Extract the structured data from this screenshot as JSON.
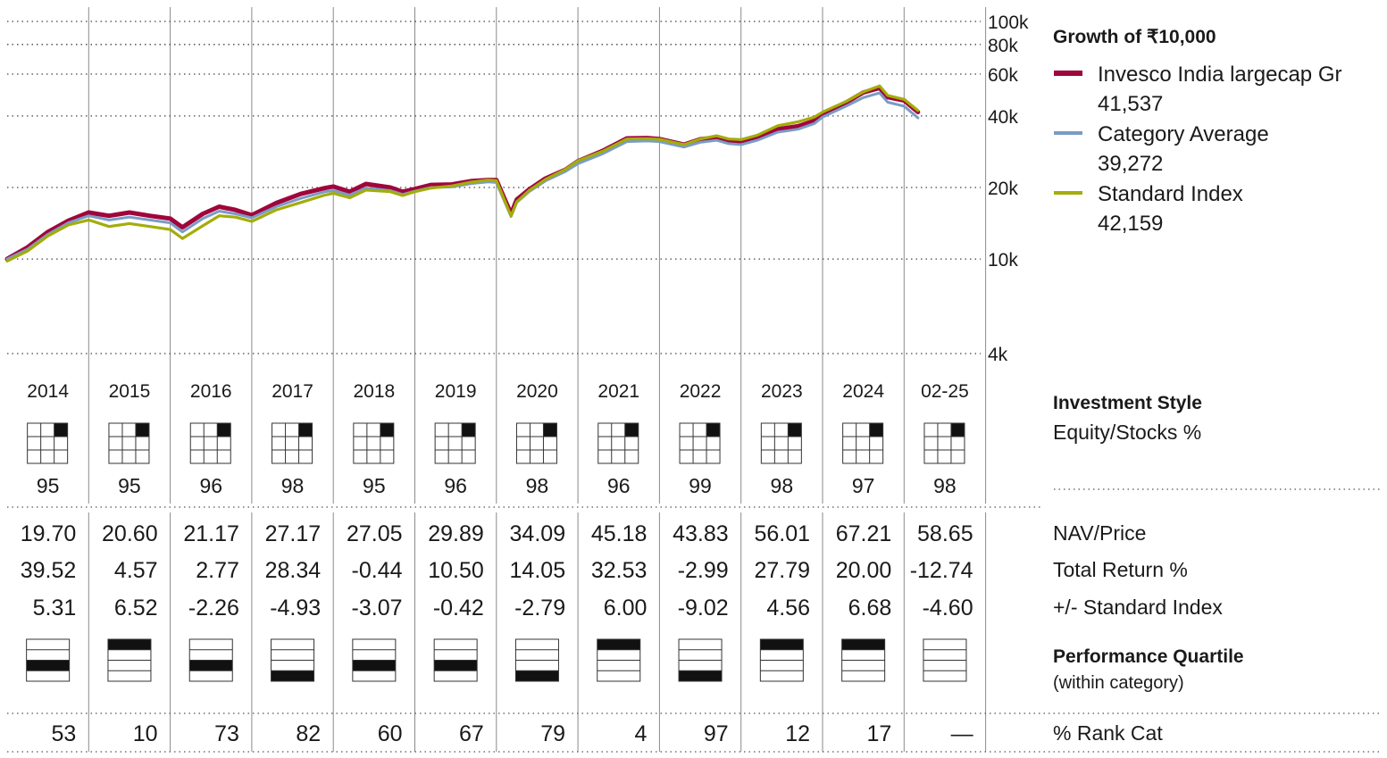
{
  "legend": {
    "title": "Growth of  ₹10,000",
    "items": [
      {
        "name": "Invesco India largecap Gr",
        "value": "41,537",
        "color": "#a0053c"
      },
      {
        "name": "Category Average",
        "value": "39,272",
        "color": "#7a9cc6"
      },
      {
        "name": "Standard Index",
        "value": "42,159",
        "color": "#a4ad0a"
      }
    ]
  },
  "chart_data": {
    "type": "line",
    "title": "Growth of  ₹10,000",
    "y_scale": "log",
    "ylim": [
      4000,
      100000
    ],
    "y_ticks": [
      {
        "value": 100000,
        "label": "100k"
      },
      {
        "value": 80000,
        "label": "80k"
      },
      {
        "value": 60000,
        "label": "60k"
      },
      {
        "value": 40000,
        "label": "40k"
      },
      {
        "value": 20000,
        "label": "20k"
      },
      {
        "value": 10000,
        "label": "10k"
      },
      {
        "value": 4000,
        "label": "4k"
      }
    ],
    "x_ticks": [
      "2014",
      "2015",
      "2016",
      "2017",
      "2018",
      "2019",
      "2020",
      "2021",
      "2022",
      "2023",
      "2024",
      "02-25"
    ],
    "xlim": [
      2014.0,
      2025.17
    ],
    "grid": true,
    "legend_position": "right",
    "series": [
      {
        "name": "Invesco India largecap Gr",
        "color": "#a0053c",
        "x": [
          2014.0,
          2014.25,
          2014.5,
          2014.75,
          2015.0,
          2015.25,
          2015.5,
          2015.75,
          2016.0,
          2016.15,
          2016.4,
          2016.6,
          2016.8,
          2017.0,
          2017.3,
          2017.6,
          2017.9,
          2018.0,
          2018.2,
          2018.4,
          2018.7,
          2018.85,
          2019.0,
          2019.2,
          2019.45,
          2019.7,
          2019.9,
          2020.0,
          2020.18,
          2020.25,
          2020.4,
          2020.6,
          2020.85,
          2021.0,
          2021.3,
          2021.6,
          2021.85,
          2022.0,
          2022.3,
          2022.5,
          2022.7,
          2022.85,
          2023.0,
          2023.2,
          2023.45,
          2023.7,
          2023.9,
          2024.0,
          2024.3,
          2024.5,
          2024.7,
          2024.8,
          2025.0,
          2025.17
        ],
        "y": [
          10000,
          11200,
          13000,
          14500,
          15700,
          15200,
          15700,
          15200,
          14800,
          13600,
          15500,
          16600,
          16100,
          15300,
          17200,
          18800,
          19900,
          20200,
          19200,
          20700,
          20000,
          19200,
          19700,
          20500,
          20600,
          21300,
          21500,
          21500,
          15500,
          17800,
          19600,
          21800,
          23800,
          25800,
          28500,
          32200,
          32300,
          32000,
          30300,
          31900,
          32500,
          31600,
          31200,
          32500,
          35200,
          36200,
          38200,
          40800,
          45800,
          50200,
          52500,
          48000,
          46500,
          41537
        ]
      },
      {
        "name": "Category Average",
        "color": "#7a9cc6",
        "x": [
          2014.0,
          2014.25,
          2014.5,
          2014.75,
          2015.0,
          2015.25,
          2015.5,
          2015.75,
          2016.0,
          2016.15,
          2016.4,
          2016.6,
          2016.8,
          2017.0,
          2017.3,
          2017.6,
          2017.9,
          2018.0,
          2018.2,
          2018.4,
          2018.7,
          2018.85,
          2019.0,
          2019.2,
          2019.45,
          2019.7,
          2019.9,
          2020.0,
          2020.18,
          2020.25,
          2020.4,
          2020.6,
          2020.85,
          2021.0,
          2021.3,
          2021.6,
          2021.85,
          2022.0,
          2022.3,
          2022.5,
          2022.7,
          2022.85,
          2023.0,
          2023.2,
          2023.45,
          2023.7,
          2023.9,
          2024.0,
          2024.3,
          2024.5,
          2024.7,
          2024.8,
          2025.0,
          2025.17
        ],
        "y": [
          10000,
          11000,
          12700,
          14200,
          15200,
          14600,
          15000,
          14600,
          14200,
          13000,
          14800,
          15900,
          15500,
          14900,
          16600,
          18000,
          19200,
          19400,
          18600,
          19900,
          19400,
          18700,
          19300,
          20000,
          20100,
          20800,
          21100,
          21000,
          15100,
          17300,
          19200,
          21300,
          23400,
          25200,
          27700,
          31200,
          31400,
          31200,
          29600,
          31000,
          31600,
          30600,
          30300,
          31600,
          34200,
          35200,
          37200,
          39600,
          44200,
          47800,
          50000,
          45700,
          44000,
          39272
        ]
      },
      {
        "name": "Standard Index",
        "color": "#a4ad0a",
        "x": [
          2014.0,
          2014.25,
          2014.5,
          2014.75,
          2015.0,
          2015.25,
          2015.5,
          2015.75,
          2016.0,
          2016.15,
          2016.4,
          2016.6,
          2016.8,
          2017.0,
          2017.3,
          2017.6,
          2017.9,
          2018.0,
          2018.2,
          2018.4,
          2018.7,
          2018.85,
          2019.0,
          2019.2,
          2019.45,
          2019.7,
          2019.9,
          2020.0,
          2020.18,
          2020.25,
          2020.4,
          2020.6,
          2020.85,
          2021.0,
          2021.3,
          2021.6,
          2021.85,
          2022.0,
          2022.3,
          2022.5,
          2022.7,
          2022.85,
          2023.0,
          2023.2,
          2023.45,
          2023.7,
          2023.9,
          2024.0,
          2024.3,
          2024.5,
          2024.7,
          2024.8,
          2025.0,
          2025.17
        ],
        "y": [
          9800,
          10800,
          12500,
          13900,
          14600,
          13700,
          14100,
          13700,
          13300,
          12200,
          13800,
          15200,
          15000,
          14400,
          16100,
          17300,
          18600,
          18900,
          18100,
          19500,
          19200,
          18500,
          19200,
          19900,
          20300,
          21100,
          21500,
          21400,
          15200,
          17400,
          19400,
          21600,
          23900,
          25900,
          28400,
          32000,
          32100,
          31900,
          30300,
          32000,
          33000,
          32000,
          31800,
          33200,
          36400,
          37800,
          39600,
          41500,
          46200,
          50500,
          53500,
          48800,
          47000,
          42159
        ]
      }
    ]
  },
  "years": [
    "2014",
    "2015",
    "2016",
    "2017",
    "2018",
    "2019",
    "2020",
    "2021",
    "2022",
    "2023",
    "2024",
    "02-25"
  ],
  "style_box": {
    "highlight": "large-growth"
  },
  "equity_pct": [
    "95",
    "95",
    "96",
    "98",
    "95",
    "96",
    "98",
    "96",
    "99",
    "98",
    "97",
    "98"
  ],
  "nav": [
    "19.70",
    "20.60",
    "21.17",
    "27.17",
    "27.05",
    "29.89",
    "34.09",
    "45.18",
    "43.83",
    "56.01",
    "67.21",
    "58.65"
  ],
  "total_return": [
    "39.52",
    "4.57",
    "2.77",
    "28.34",
    "-0.44",
    "10.50",
    "14.05",
    "32.53",
    "-2.99",
    "27.79",
    "20.00",
    "-12.74"
  ],
  "vs_index": [
    "5.31",
    "6.52",
    "-2.26",
    "-4.93",
    "-3.07",
    "-0.42",
    "-2.79",
    "6.00",
    "-9.02",
    "4.56",
    "6.68",
    "-4.60"
  ],
  "quartile": [
    3,
    1,
    3,
    4,
    3,
    3,
    4,
    1,
    4,
    1,
    1,
    0
  ],
  "rank_cat": [
    "53",
    "10",
    "73",
    "82",
    "60",
    "67",
    "79",
    "4",
    "97",
    "12",
    "17",
    "—"
  ],
  "labels": {
    "investment_style": "Investment Style",
    "equity": "Equity/Stocks %",
    "nav": "NAV/Price",
    "total_return": "Total Return %",
    "vs_index": "+/- Standard Index",
    "perf_quartile": "Performance Quartile",
    "within_category": "(within category)",
    "rank_cat": "% Rank Cat"
  }
}
